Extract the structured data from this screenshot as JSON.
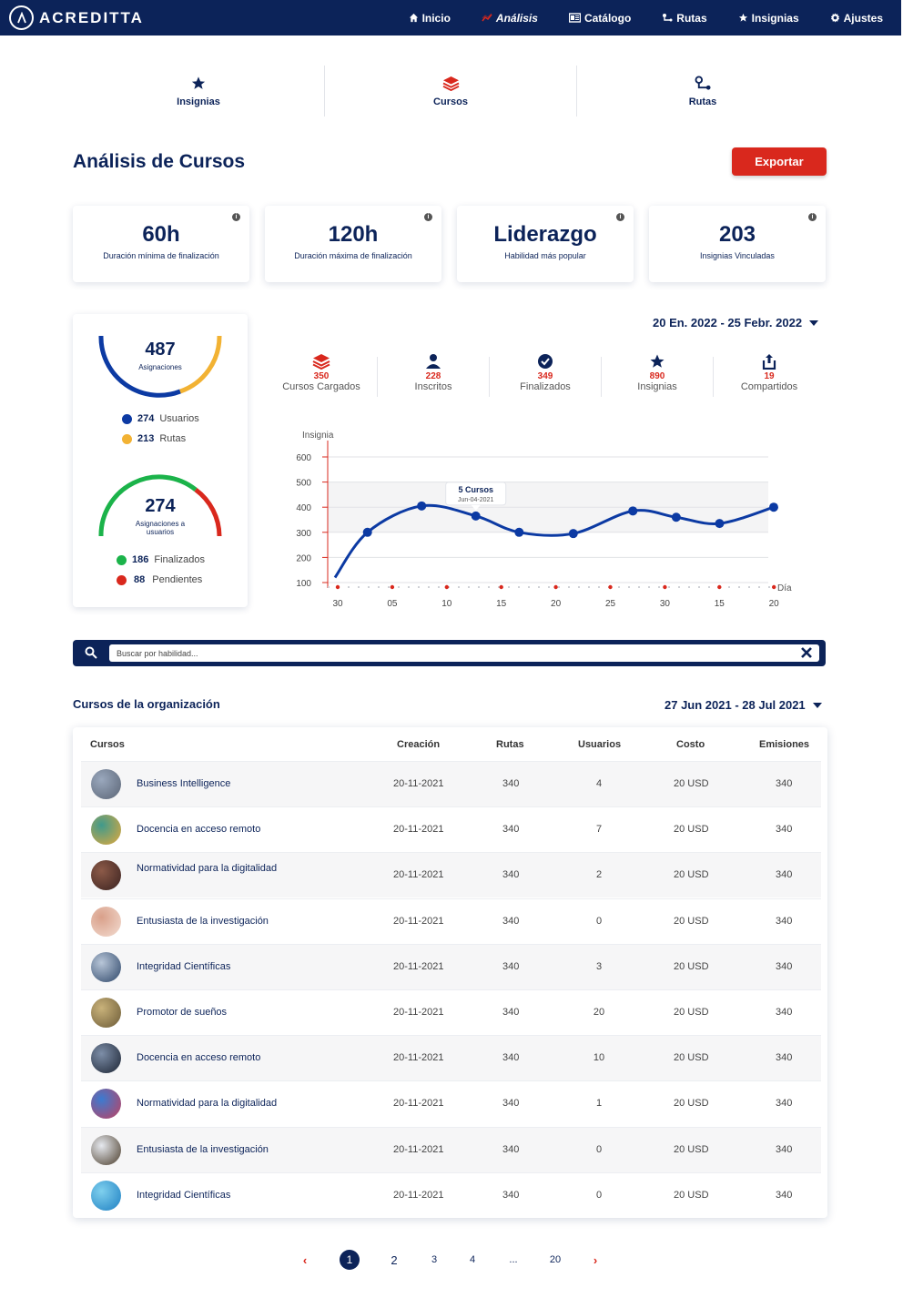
{
  "brand": {
    "name": "ACREDITTA"
  },
  "nav": [
    {
      "label": "Inicio",
      "icon": "home-icon"
    },
    {
      "label": "Análisis",
      "icon": "analytics-icon",
      "active": true
    },
    {
      "label": "Catálogo",
      "icon": "catalog-icon"
    },
    {
      "label": "Rutas",
      "icon": "routes-icon"
    },
    {
      "label": "Insignias",
      "icon": "star-icon"
    },
    {
      "label": "Ajustes",
      "icon": "gear-icon"
    }
  ],
  "subtabs": [
    {
      "label": "Insignias",
      "icon": "star-icon"
    },
    {
      "label": "Cursos",
      "icon": "layers-icon",
      "active": true
    },
    {
      "label": "Rutas",
      "icon": "routes-icon"
    }
  ],
  "page": {
    "title": "Análisis de Cursos",
    "export_label": "Exportar"
  },
  "stats": [
    {
      "value": "60h",
      "label": "Duración mínima de finalización"
    },
    {
      "value": "120h",
      "label": "Duración máxima de finalización"
    },
    {
      "value": "Liderazgo",
      "label": "Habilidad más popular"
    },
    {
      "value": "203",
      "label": "Insignias Vinculadas"
    }
  ],
  "gauges": {
    "assignments": {
      "value": "487",
      "label": "Asignaciones",
      "legend": [
        {
          "value": "274",
          "label": "Usuarios",
          "color": "#0c3aa3"
        },
        {
          "value": "213",
          "label": "Rutas",
          "color": "#f2b233"
        }
      ]
    },
    "user_assignments": {
      "value": "274",
      "label_line1": "Asignaciones a",
      "label_line2": "usuarios",
      "legend": [
        {
          "value": "186",
          "label": "Finalizados",
          "color": "#1bb34a"
        },
        {
          "value": "88",
          "label": "Pendientes",
          "color": "#d9281d"
        }
      ]
    }
  },
  "chart_range": "20 En. 2022 - 25 Febr. 2022",
  "metrics": [
    {
      "value": "350",
      "label": "Cursos Cargados",
      "icon": "layers-icon"
    },
    {
      "value": "228",
      "label": "Inscritos",
      "icon": "user-icon"
    },
    {
      "value": "349",
      "label": "Finalizados",
      "icon": "check-icon"
    },
    {
      "value": "890",
      "label": "Insignias",
      "icon": "star-icon"
    },
    {
      "value": "19",
      "label": "Compartidos",
      "icon": "share-icon"
    }
  ],
  "chart_data": {
    "type": "line",
    "ylabel": "Insignia",
    "xlabel": "Día",
    "ylim": [
      100,
      600
    ],
    "yticks": [
      100,
      200,
      300,
      400,
      500,
      600
    ],
    "xticks": [
      "30",
      "05",
      "10",
      "15",
      "20",
      "25",
      "30",
      "15",
      "20"
    ],
    "x": [
      0,
      0.6,
      1.6,
      2.6,
      3.4,
      4.4,
      5.5,
      6.3,
      7.1,
      8.1
    ],
    "values": [
      120,
      300,
      405,
      365,
      300,
      295,
      385,
      360,
      335,
      400
    ],
    "tooltip": {
      "title": "5 Cursos",
      "date": "Jun-04-2021"
    },
    "grid": true
  },
  "search": {
    "placeholder": "Buscar por habilidad..."
  },
  "courses_section": {
    "title": "Cursos de la organización",
    "range": "27 Jun 2021 - 28 Jul 2021"
  },
  "table": {
    "columns": [
      "Cursos",
      "Creación",
      "Rutas",
      "Usuarios",
      "Costo",
      "Emisiones"
    ],
    "rows": [
      {
        "name": "Business Intelligence",
        "date": "20-11-2021",
        "routes": "340",
        "users": "4",
        "cost": "20 USD",
        "emissions": "340",
        "thumb": [
          "#5a6475",
          "#9aa8bd"
        ]
      },
      {
        "name": "Docencia en acceso remoto",
        "date": "20-11-2021",
        "routes": "340",
        "users": "7",
        "cost": "20 USD",
        "emissions": "340",
        "thumb": [
          "#e4a93b",
          "#3f9a8c"
        ]
      },
      {
        "name": "Normatividad para la digitalidad",
        "date": "20-11-2021",
        "routes": "340",
        "users": "2",
        "cost": "20 USD",
        "emissions": "340",
        "thumb": [
          "#3a2220",
          "#8c5a48"
        ]
      },
      {
        "name": "Entusiasta de  la investigación",
        "date": "20-11-2021",
        "routes": "340",
        "users": "0",
        "cost": "20 USD",
        "emissions": "340",
        "thumb": [
          "#f3ddd2",
          "#d9a08a"
        ]
      },
      {
        "name": "Integridad Científicas",
        "date": "20-11-2021",
        "routes": "340",
        "users": "3",
        "cost": "20 USD",
        "emissions": "340",
        "thumb": [
          "#2d4669",
          "#b8c6d8"
        ]
      },
      {
        "name": "Promotor de sueños",
        "date": "20-11-2021",
        "routes": "340",
        "users": "20",
        "cost": "20 USD",
        "emissions": "340",
        "thumb": [
          "#6b5a36",
          "#c9b27a"
        ]
      },
      {
        "name": "Docencia en acceso remoto",
        "date": "20-11-2021",
        "routes": "340",
        "users": "10",
        "cost": "20 USD",
        "emissions": "340",
        "thumb": [
          "#1c2433",
          "#7d8ea8"
        ]
      },
      {
        "name": "Normatividad para la digitalidad",
        "date": "20-11-2021",
        "routes": "340",
        "users": "1",
        "cost": "20 USD",
        "emissions": "340",
        "thumb": [
          "#c2405f",
          "#3b7bd1"
        ]
      },
      {
        "name": "Entusiasta de  la investigación",
        "date": "20-11-2021",
        "routes": "340",
        "users": "0",
        "cost": "20 USD",
        "emissions": "340",
        "thumb": [
          "#4a3c2a",
          "#e6e9ef"
        ]
      },
      {
        "name": "Integridad Científicas",
        "date": "20-11-2021",
        "routes": "340",
        "users": "0",
        "cost": "20 USD",
        "emissions": "340",
        "thumb": [
          "#1e7fc2",
          "#7fd0ee"
        ]
      }
    ]
  },
  "pagination": {
    "prev": "‹",
    "pages": [
      "1",
      "2",
      "3",
      "4",
      "...",
      "20"
    ],
    "current": "1",
    "next": "›"
  },
  "colors": {
    "primary": "#0c2359",
    "accent": "#d9281d",
    "line": "#0c3aa3"
  }
}
